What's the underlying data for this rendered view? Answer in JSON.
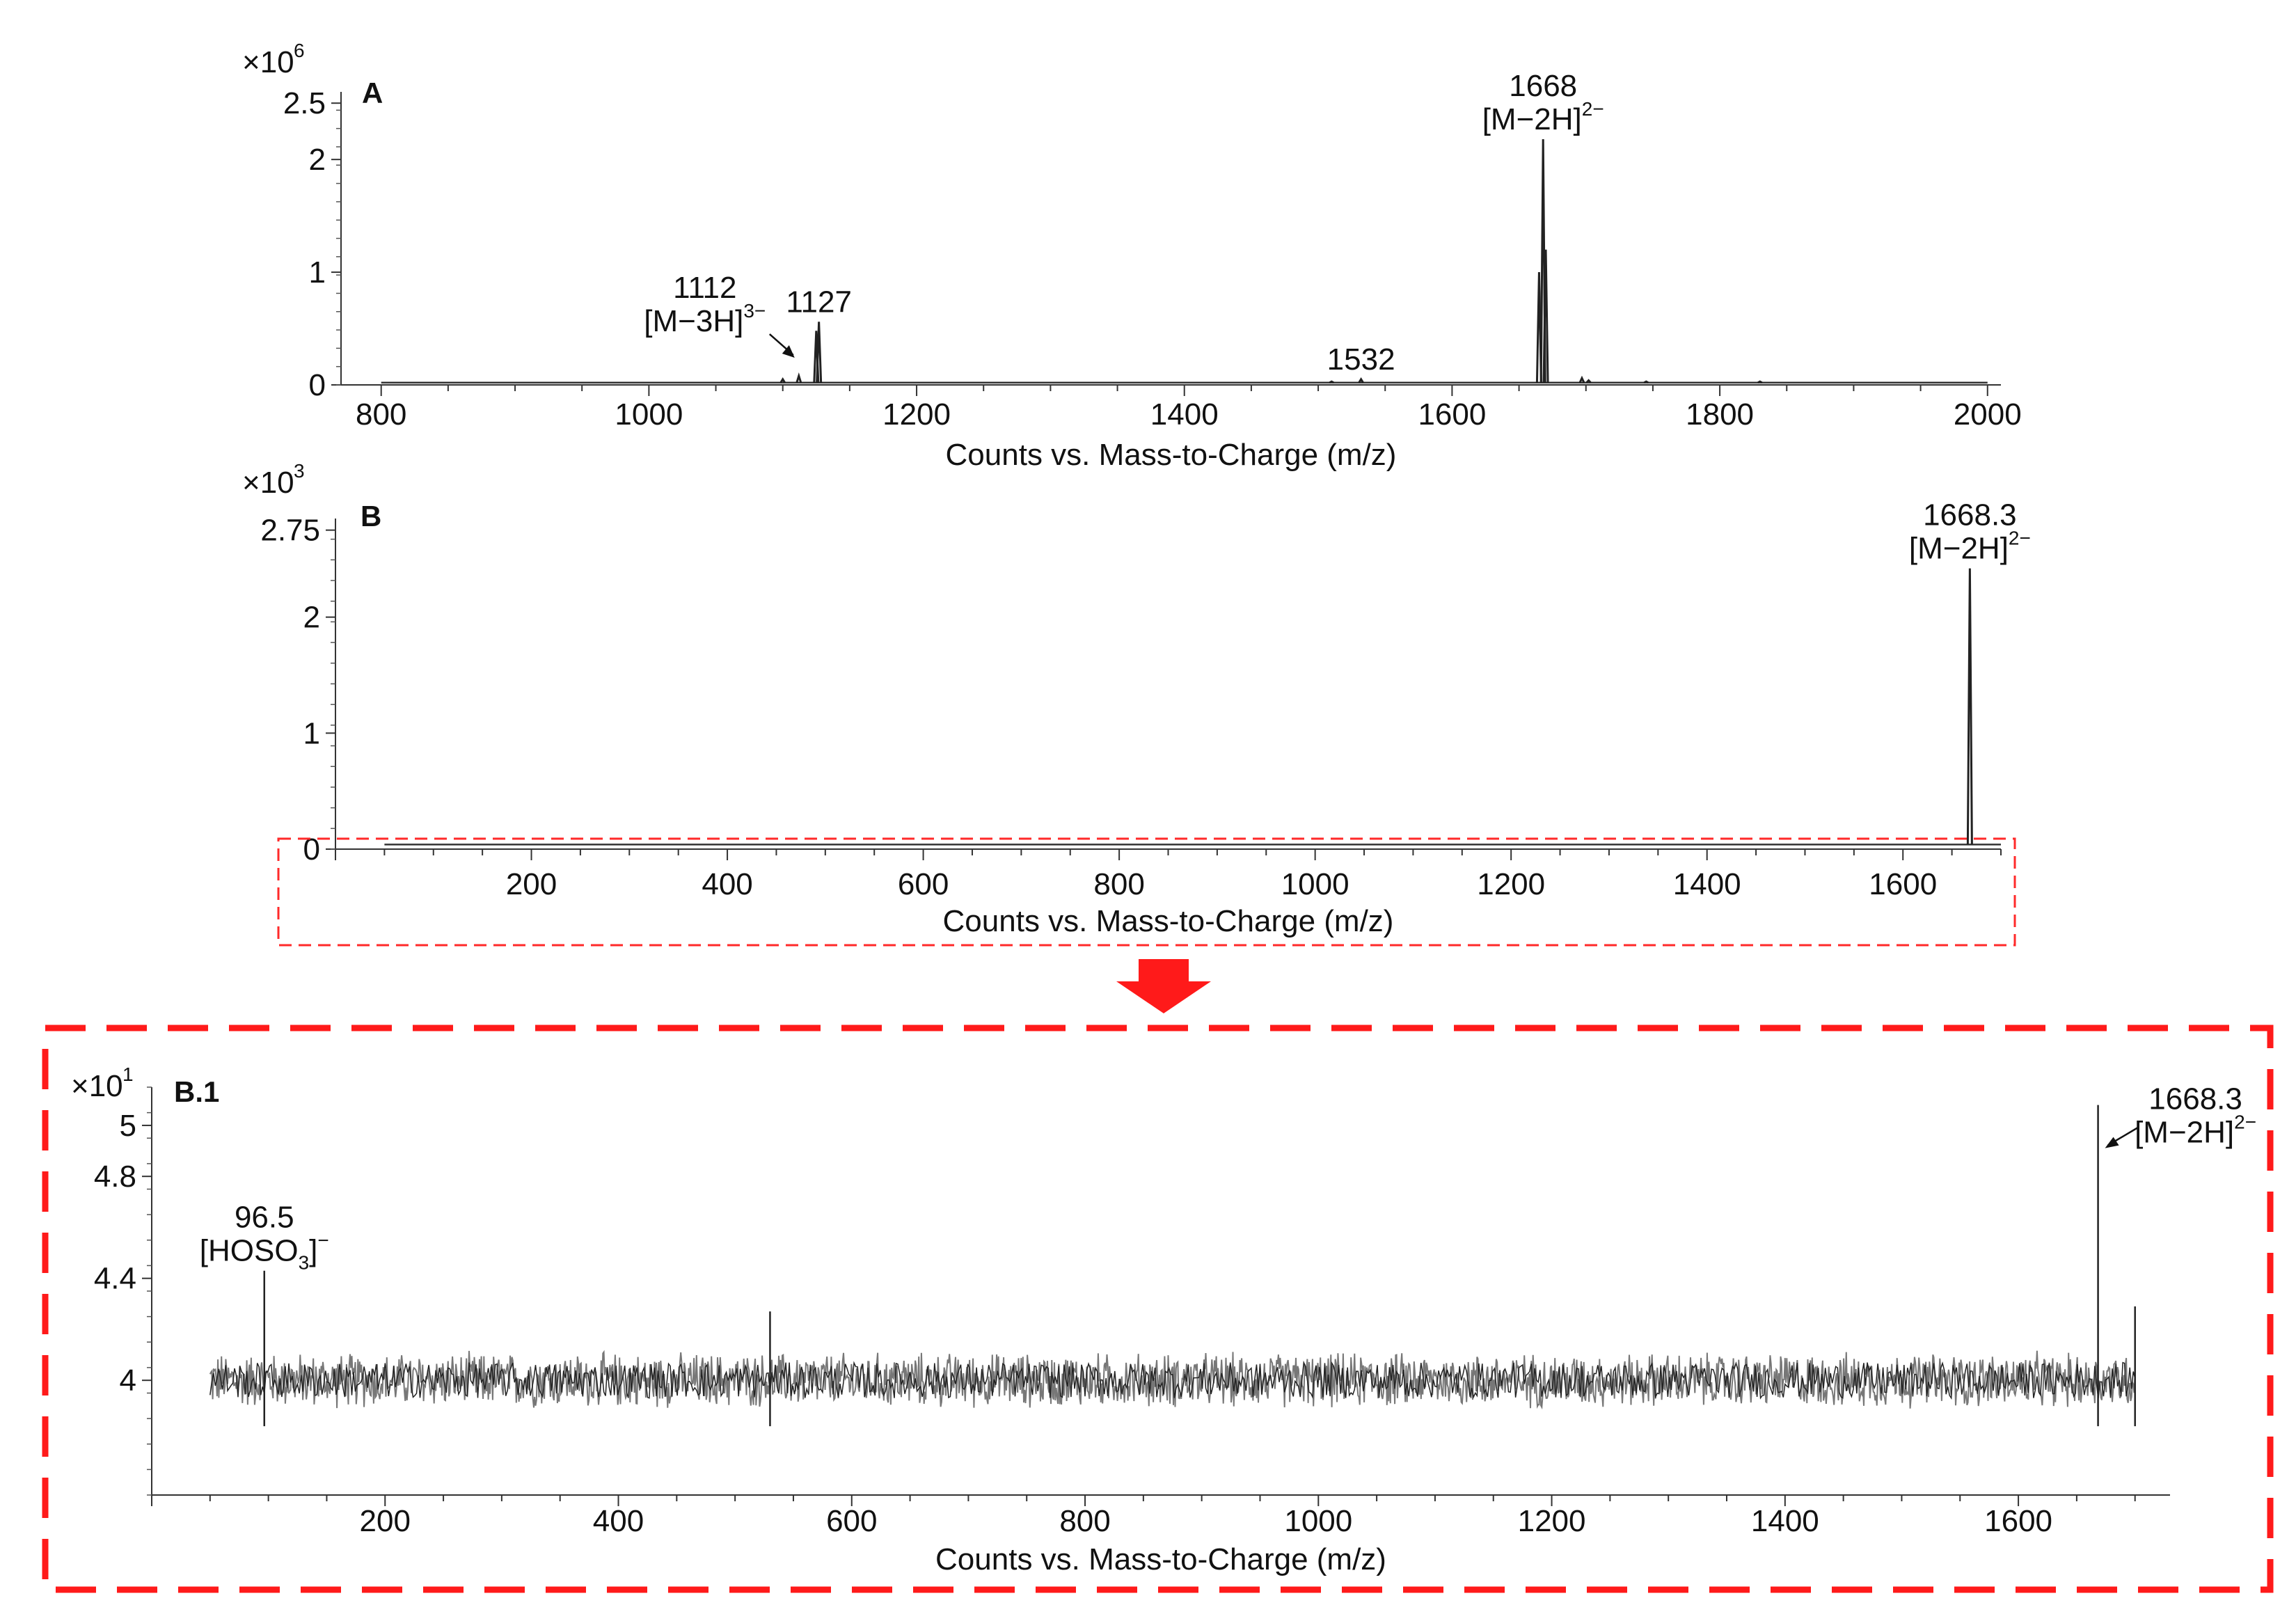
{
  "chart_data": [
    {
      "type": "line",
      "panel_label": "A",
      "xlabel": "Counts vs. Mass-to-Charge (m/z)",
      "ylabel": "",
      "y_multiplier": "×10",
      "y_exponent": "6",
      "xlim": [
        770,
        2010
      ],
      "ylim": [
        0,
        2.6
      ],
      "x_ticks": [
        "800",
        "1000",
        "1200",
        "1400",
        "1600",
        "1800",
        "2000"
      ],
      "y_ticks": [
        "0",
        "1",
        "2",
        "2.5"
      ],
      "baseline": 0.02,
      "x_start": 800,
      "x_end": 2000,
      "peaks": [
        {
          "x": 1100,
          "y": 0.05
        },
        {
          "x": 1112,
          "y": 0.08
        },
        {
          "x": 1125,
          "y": 0.48
        },
        {
          "x": 1127,
          "y": 0.56
        },
        {
          "x": 1532,
          "y": 0.05
        },
        {
          "x": 1510,
          "y": 0.03
        },
        {
          "x": 1665,
          "y": 1.0
        },
        {
          "x": 1668,
          "y": 2.18
        },
        {
          "x": 1670,
          "y": 1.2
        },
        {
          "x": 1697,
          "y": 0.06
        },
        {
          "x": 1702,
          "y": 0.04
        },
        {
          "x": 1745,
          "y": 0.03
        },
        {
          "x": 1830,
          "y": 0.03
        }
      ],
      "annotations": [
        {
          "x": 1112,
          "lines": [
            "1112",
            "[M−3H]"
          ],
          "sup": "3−"
        },
        {
          "x": 1127,
          "lines": [
            "1127"
          ]
        },
        {
          "x": 1532,
          "lines": [
            "1532"
          ]
        },
        {
          "x": 1668,
          "lines": [
            "1668",
            "[M−2H]"
          ],
          "sup": "2−"
        }
      ]
    },
    {
      "type": "line",
      "panel_label": "B",
      "xlabel": "Counts vs. Mass-to-Charge (m/z)",
      "ylabel": "",
      "y_multiplier": "×10",
      "y_exponent": "3",
      "xlim": [
        0,
        1700
      ],
      "ylim": [
        0,
        2.85
      ],
      "x_ticks": [
        "200",
        "400",
        "600",
        "800",
        "1000",
        "1200",
        "1400",
        "1600"
      ],
      "y_ticks": [
        "0",
        "1",
        "2",
        "2.75"
      ],
      "baseline": 0.04,
      "x_start": 50,
      "x_end": 1700,
      "peaks": [
        {
          "x": 1668.3,
          "y": 2.42
        }
      ],
      "annotations": [
        {
          "x": 1668.3,
          "lines": [
            "1668.3",
            "[M−2H]"
          ],
          "sup": "2−"
        }
      ]
    },
    {
      "type": "line",
      "panel_label": "B.1",
      "xlabel": "Counts vs. Mass-to-Charge (m/z)",
      "ylabel": "",
      "y_multiplier": "×10",
      "y_exponent": "1",
      "xlim": [
        0,
        1730
      ],
      "ylim": [
        3.55,
        5.15
      ],
      "x_ticks": [
        "200",
        "400",
        "600",
        "800",
        "1000",
        "1200",
        "1400",
        "1600"
      ],
      "y_ticks": [
        "4",
        "4.4",
        "4.8",
        "5"
      ],
      "noise_center": 4.0,
      "noise_amplitude": 0.1,
      "x_start": 50,
      "x_end": 1700,
      "peaks": [
        {
          "x": 96.5,
          "y": 4.43
        },
        {
          "x": 530,
          "y": 4.27
        },
        {
          "x": 1668.3,
          "y": 5.08
        },
        {
          "x": 1700,
          "y": 4.29
        }
      ],
      "annotations": [
        {
          "x": 96.5,
          "lines": [
            "96.5",
            "[HOSO"
          ],
          "sub": "3",
          "tail": "]",
          "sup": "−"
        },
        {
          "x": 1668.3,
          "lines": [
            "1668.3",
            "[M−2H]"
          ],
          "sup": "2−"
        }
      ]
    }
  ]
}
